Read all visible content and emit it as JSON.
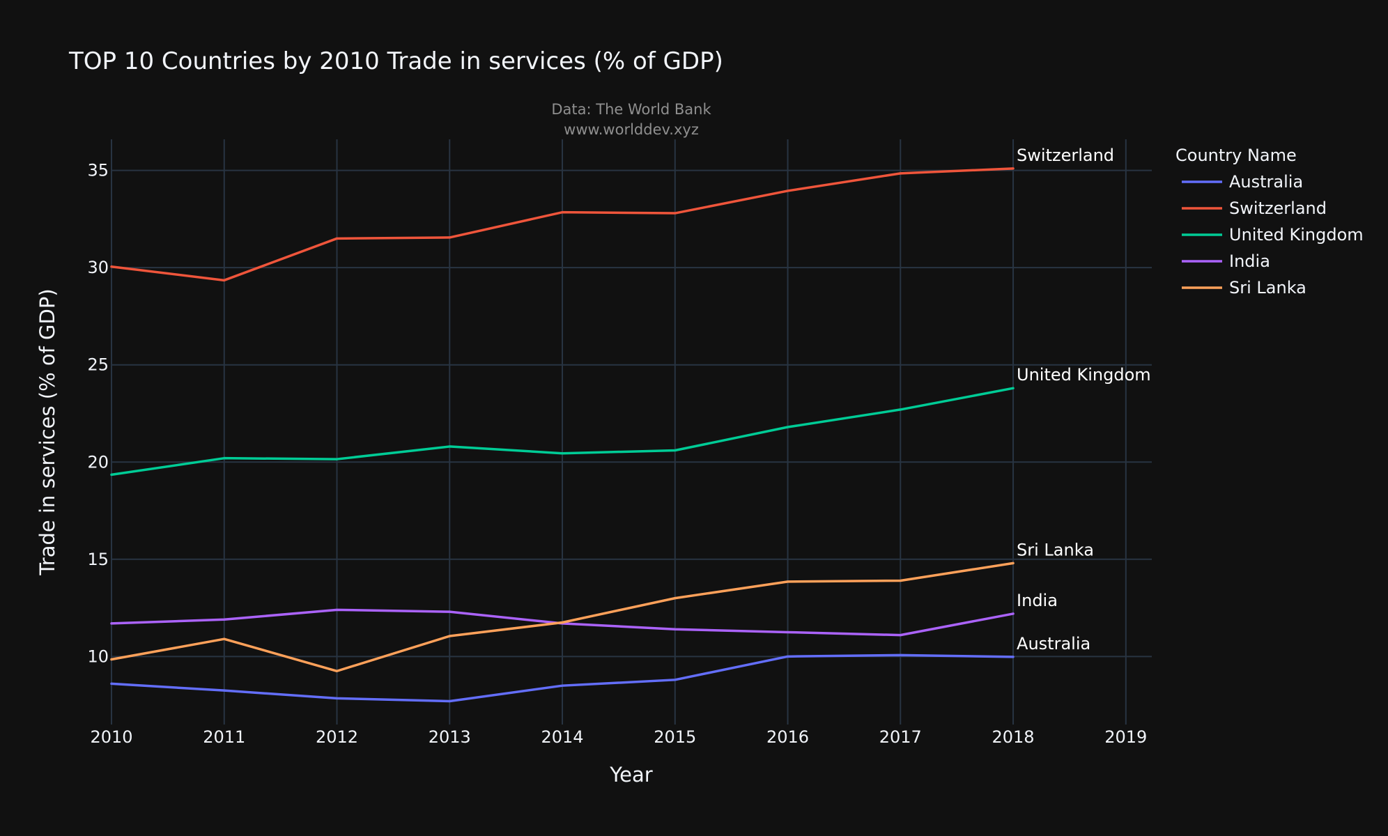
{
  "chart_data": {
    "type": "line",
    "title": "TOP 10 Countries by 2010 Trade in services (% of GDP)",
    "subtitle_lines": [
      "Data: The World Bank",
      "www.worlddev.xyz"
    ],
    "xlabel": "Year",
    "ylabel": "Trade in services (% of GDP)",
    "legend_title": "Country Name",
    "legend_position": "right",
    "grid": true,
    "background": "#111111",
    "grid_color": "#283442",
    "x": [
      2010,
      2011,
      2012,
      2013,
      2014,
      2015,
      2016,
      2017,
      2018
    ],
    "x_ticks": [
      2010,
      2011,
      2012,
      2013,
      2014,
      2015,
      2016,
      2017,
      2018,
      2019
    ],
    "y_ticks": [
      10,
      15,
      20,
      25,
      30,
      35
    ],
    "xlim": [
      2010,
      2019.23
    ],
    "ylim": [
      6.5,
      36.6
    ],
    "series": [
      {
        "name": "Australia",
        "color": "#636efa",
        "values": [
          8.6,
          8.25,
          7.85,
          7.7,
          8.5,
          8.8,
          10.0,
          10.07,
          9.98
        ]
      },
      {
        "name": "Switzerland",
        "color": "#ef553b",
        "values": [
          30.05,
          29.35,
          31.5,
          31.55,
          32.85,
          32.8,
          33.95,
          34.85,
          35.1
        ]
      },
      {
        "name": "United Kingdom",
        "color": "#00cc96",
        "values": [
          19.35,
          20.2,
          20.15,
          20.8,
          20.45,
          20.6,
          21.8,
          22.7,
          23.8
        ]
      },
      {
        "name": "India",
        "color": "#ab63fa",
        "values": [
          11.7,
          11.9,
          12.4,
          12.3,
          11.7,
          11.4,
          11.25,
          11.1,
          12.2
        ]
      },
      {
        "name": "Sri Lanka",
        "color": "#ffa15a",
        "values": [
          9.85,
          10.9,
          9.25,
          11.05,
          11.75,
          13.0,
          13.85,
          13.9,
          14.8
        ]
      }
    ]
  }
}
